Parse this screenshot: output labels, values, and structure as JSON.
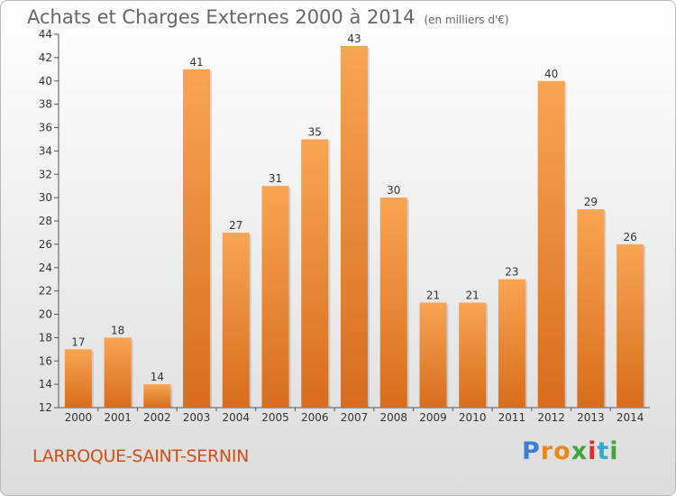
{
  "title": {
    "main": "Achats et Charges Externes 2000 à 2014",
    "sub": "(en milliers d'€)"
  },
  "commune": "LARROQUE-SAINT-SERNIN",
  "brand": {
    "letters": [
      "P",
      "r",
      "o",
      "x",
      "i",
      "t",
      "i"
    ],
    "colors": [
      "#3a7fd1",
      "#e8891f",
      "#e8891f",
      "#3da53a",
      "#d8312a",
      "#35a7c9",
      "#3da53a"
    ]
  },
  "chart_data": {
    "type": "bar",
    "categories": [
      "2000",
      "2001",
      "2002",
      "2003",
      "2004",
      "2005",
      "2006",
      "2007",
      "2008",
      "2009",
      "2010",
      "2011",
      "2012",
      "2013",
      "2014"
    ],
    "values": [
      17,
      18,
      14,
      41,
      27,
      31,
      35,
      43,
      30,
      21,
      21,
      23,
      40,
      29,
      26
    ],
    "title": "Achats et Charges Externes 2000 à 2014",
    "subtitle": "(en milliers d'€)",
    "ylim": [
      12,
      44
    ],
    "yticks": [
      12,
      14,
      16,
      18,
      20,
      22,
      24,
      26,
      28,
      30,
      32,
      34,
      36,
      38,
      40,
      42,
      44
    ],
    "grid": false,
    "bar_color": "#f0953a"
  }
}
